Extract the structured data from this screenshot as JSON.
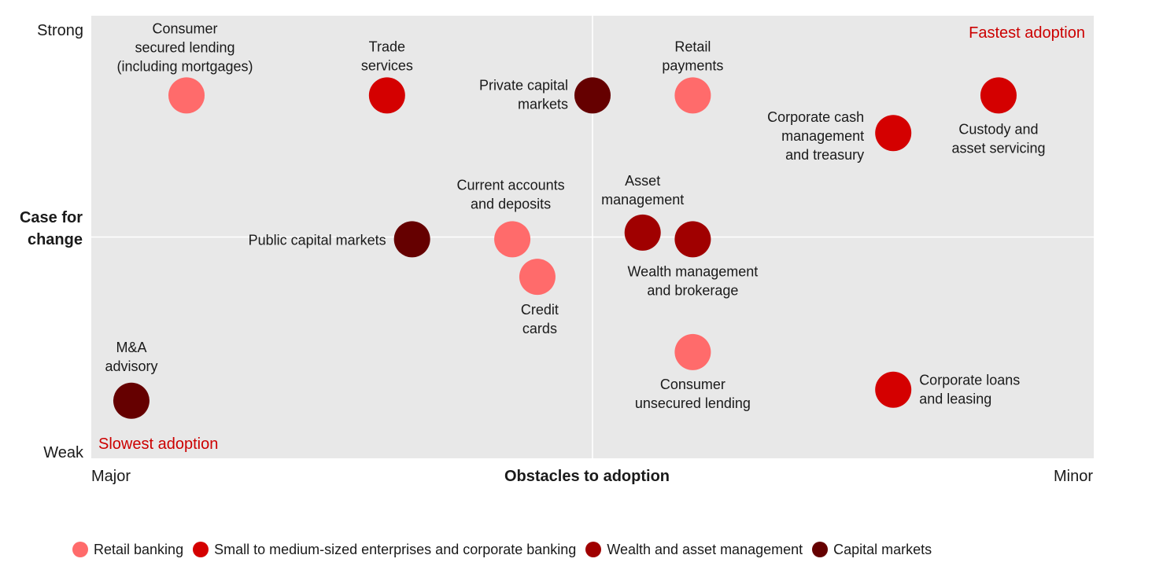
{
  "chart_data": {
    "type": "scatter",
    "title": "",
    "xlabel": "Obstacles to adoption",
    "ylabel": [
      "Case for",
      "change"
    ],
    "xlim": [
      0,
      10
    ],
    "ylim": [
      0,
      10
    ],
    "x_low_label": "Major",
    "x_high_label": "Minor",
    "y_low_label": "Weak",
    "y_high_label": "Strong",
    "quadrant_lines": {
      "x": 5,
      "y": 5
    },
    "annotations": {
      "top_right": "Fastest adoption",
      "bottom_left": "Slowest adoption"
    },
    "grid": false,
    "legend_position": "bottom",
    "series": [
      {
        "name": "Retail banking",
        "color": "#ff6b6b"
      },
      {
        "name": "Small to medium-sized enterprises and corporate banking",
        "color": "#d40000"
      },
      {
        "name": "Wealth and asset management",
        "color": "#a00000"
      },
      {
        "name": "Capital markets",
        "color": "#650000"
      }
    ],
    "points": [
      {
        "name": "Consumer secured lending (including mortgages)",
        "lines": [
          "Consumer",
          "secured lending",
          "(including mortgages)"
        ],
        "series": 0,
        "x": 0.95,
        "y": 8.2
      },
      {
        "name": "Trade services",
        "lines": [
          "Trade",
          "services"
        ],
        "series": 1,
        "x": 2.95,
        "y": 8.2
      },
      {
        "name": "Private capital markets",
        "lines": [
          "Private capital",
          "markets"
        ],
        "series": 3,
        "x": 5.0,
        "y": 8.2
      },
      {
        "name": "Retail payments",
        "lines": [
          "Retail",
          "payments"
        ],
        "series": 0,
        "x": 6.0,
        "y": 8.2
      },
      {
        "name": "Corporate cash management and treasury",
        "lines": [
          "Corporate cash",
          "management",
          "and treasury"
        ],
        "series": 1,
        "x": 8.0,
        "y": 7.35
      },
      {
        "name": "Custody and asset servicing",
        "lines": [
          "Custody and",
          "asset servicing"
        ],
        "series": 1,
        "x": 9.05,
        "y": 8.2
      },
      {
        "name": "Asset management",
        "lines": [
          "Asset",
          "management"
        ],
        "series": 2,
        "x": 5.5,
        "y": 5.1
      },
      {
        "name": "Current accounts and deposits",
        "lines": [
          "Current accounts",
          "and deposits"
        ],
        "series": 0,
        "x": 4.2,
        "y": 4.95
      },
      {
        "name": "Public capital markets",
        "lines": [
          "Public capital markets"
        ],
        "series": 3,
        "x": 3.2,
        "y": 4.95
      },
      {
        "name": "Wealth management and brokerage",
        "lines": [
          "Wealth management",
          "and brokerage"
        ],
        "series": 2,
        "x": 6.0,
        "y": 4.95
      },
      {
        "name": "Credit cards",
        "lines": [
          "Credit",
          "cards"
        ],
        "series": 0,
        "x": 4.45,
        "y": 4.1
      },
      {
        "name": "Consumer unsecured lending",
        "lines": [
          "Consumer",
          "unsecured lending"
        ],
        "series": 0,
        "x": 6.0,
        "y": 2.4
      },
      {
        "name": "Corporate loans and leasing",
        "lines": [
          "Corporate loans",
          "and leasing"
        ],
        "series": 1,
        "x": 8.0,
        "y": 1.55
      },
      {
        "name": "M&A advisory",
        "lines": [
          "M&A",
          "advisory"
        ],
        "series": 3,
        "x": 0.4,
        "y": 1.3
      }
    ]
  }
}
